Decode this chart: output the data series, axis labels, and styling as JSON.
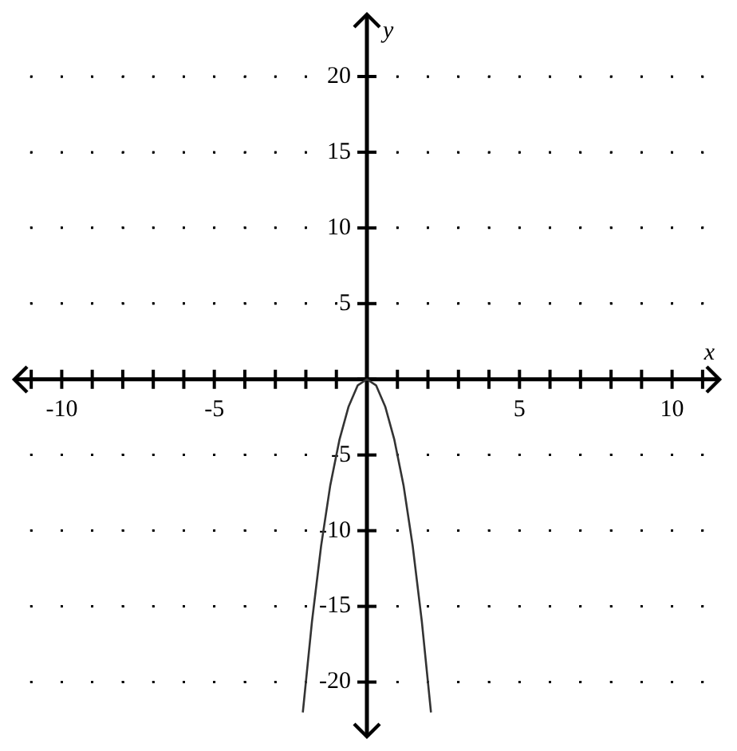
{
  "chart_data": {
    "type": "line",
    "xlabel": "x",
    "ylabel": "y",
    "x": [
      -2.1,
      -1.8,
      -1.5,
      -1.2,
      -0.9,
      -0.6,
      -0.3,
      0,
      0.3,
      0.6,
      0.9,
      1.2,
      1.5,
      1.8,
      2.1
    ],
    "series": [
      {
        "color": "#333333",
        "values": [
          -22,
          -16,
          -11,
          -7,
          -4,
          -1.8,
          -0.4,
          0,
          -0.4,
          -1.8,
          -4,
          -7,
          -11,
          -16,
          -22
        ]
      }
    ],
    "xlim": [
      -11.5,
      11.5
    ],
    "ylim": [
      -23.5,
      24
    ],
    "xticks": [
      {
        "value": -11,
        "label": null
      },
      {
        "value": -10,
        "label": "-10"
      },
      {
        "value": -9,
        "label": null
      },
      {
        "value": -8,
        "label": null
      },
      {
        "value": -7,
        "label": null
      },
      {
        "value": -6,
        "label": null
      },
      {
        "value": -5,
        "label": "-5"
      },
      {
        "value": -4,
        "label": null
      },
      {
        "value": -3,
        "label": null
      },
      {
        "value": -2,
        "label": null
      },
      {
        "value": -1,
        "label": null
      },
      {
        "value": 0,
        "label": null
      },
      {
        "value": 1,
        "label": null
      },
      {
        "value": 2,
        "label": null
      },
      {
        "value": 3,
        "label": null
      },
      {
        "value": 4,
        "label": null
      },
      {
        "value": 5,
        "label": "5"
      },
      {
        "value": 6,
        "label": null
      },
      {
        "value": 7,
        "label": null
      },
      {
        "value": 8,
        "label": null
      },
      {
        "value": 9,
        "label": null
      },
      {
        "value": 10,
        "label": "10"
      },
      {
        "value": 11,
        "label": null
      }
    ],
    "yticks": [
      -20,
      -15,
      -10,
      -5,
      {
        "value": 0,
        "label": null
      },
      5,
      10,
      15,
      20
    ],
    "grid": true,
    "legend": false,
    "marker": "none",
    "line_style": "solid"
  }
}
